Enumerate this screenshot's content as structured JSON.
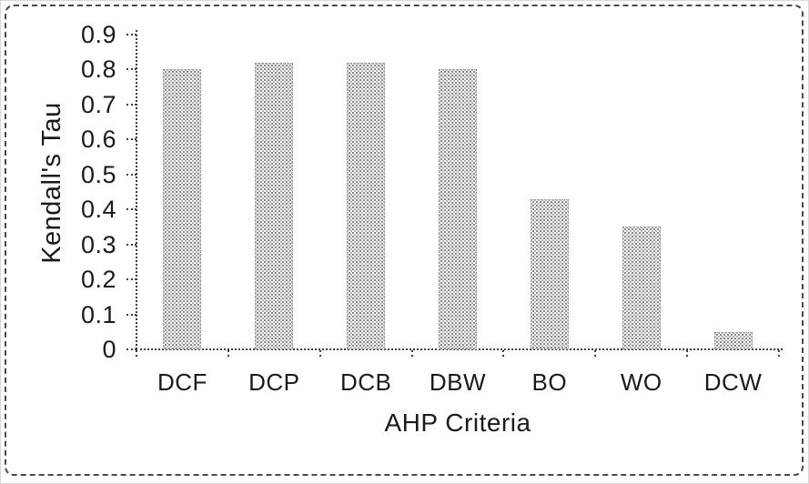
{
  "chart_data": {
    "type": "bar",
    "categories": [
      "DCF",
      "DCP",
      "DCB",
      "DBW",
      "BO",
      "WO",
      "DCW"
    ],
    "values": [
      0.8,
      0.82,
      0.82,
      0.8,
      0.43,
      0.35,
      0.05
    ],
    "title": "",
    "xlabel": "AHP Criteria",
    "ylabel": "Kendall's Tau",
    "ylim": [
      0,
      0.9
    ],
    "yticks": [
      0,
      0.1,
      0.2,
      0.3,
      0.4,
      0.5,
      0.6,
      0.7,
      0.8,
      0.9
    ],
    "ytick_labels": [
      "0",
      "0.1",
      "0.2",
      "0.3",
      "0.4",
      "0.5",
      "0.6",
      "0.7",
      "0.8",
      "0.9"
    ],
    "grid": false,
    "legend": "none",
    "bar_fill_style": "stippled-halftone",
    "colors": {
      "bar_dot": "#6b6b6b",
      "bar_dot_light": "#a0a0a0",
      "axis": "#3c3c3c",
      "text": "#1a1a1a",
      "frame_border": "#4a4a4a",
      "background": "#ffffff"
    }
  }
}
